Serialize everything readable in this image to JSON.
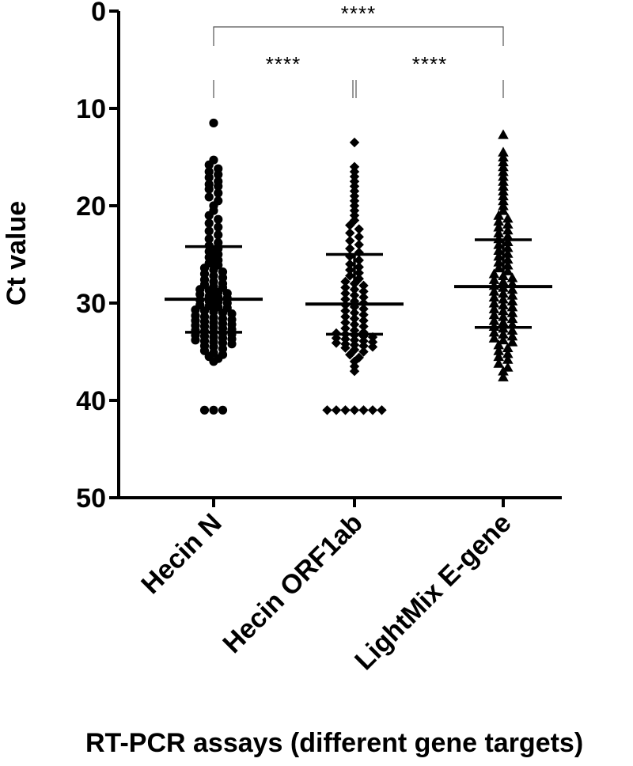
{
  "chart_data": {
    "type": "scatter",
    "ylabel": "Ct value",
    "xlabel": "RT-PCR assays (different gene targets)",
    "ylim": [
      0,
      50
    ],
    "y_inverted": true,
    "y_ticks": [
      "0",
      "10",
      "20",
      "30",
      "40",
      "50"
    ],
    "grid": false,
    "categories": [
      "Hecin N",
      "Hecin ORF1ab",
      "LightMix E-gene"
    ],
    "series": [
      {
        "category": "Hecin N",
        "marker": "circle",
        "median": 29.6,
        "iqr": [
          24.2,
          33.0
        ],
        "values": [
          11.5,
          15.3,
          15.8,
          16.2,
          16.5,
          16.8,
          17.1,
          17.5,
          17.8,
          18.0,
          18.3,
          18.7,
          19.1,
          19.5,
          20.0,
          20.5,
          21.0,
          21.4,
          21.8,
          22.2,
          22.6,
          23.0,
          23.4,
          23.8,
          24.1,
          24.4,
          24.7,
          25.0,
          25.3,
          25.6,
          25.9,
          26.1,
          26.4,
          26.6,
          26.8,
          27.0,
          27.2,
          27.4,
          27.6,
          27.8,
          28.0,
          28.1,
          28.3,
          28.4,
          28.6,
          28.7,
          28.9,
          29.0,
          29.1,
          29.3,
          29.4,
          29.5,
          29.7,
          29.8,
          29.9,
          30.0,
          30.2,
          30.3,
          30.4,
          30.5,
          30.7,
          30.8,
          30.9,
          31.0,
          31.1,
          31.3,
          31.4,
          31.5,
          31.6,
          31.7,
          31.8,
          31.9,
          32.0,
          32.1,
          32.2,
          32.3,
          32.4,
          32.5,
          32.6,
          32.7,
          32.8,
          32.9,
          33.0,
          33.1,
          33.2,
          33.3,
          33.4,
          33.5,
          33.6,
          33.7,
          33.8,
          33.9,
          34.0,
          34.1,
          34.2,
          34.4,
          34.5,
          34.7,
          34.9,
          35.1,
          35.3,
          35.5,
          35.7,
          36.0,
          41.0,
          41.0,
          41.0
        ]
      },
      {
        "category": "Hecin ORF1ab",
        "marker": "diamond",
        "median": 30.1,
        "iqr": [
          25.0,
          33.2
        ],
        "values": [
          13.5,
          16.0,
          16.5,
          17.0,
          17.5,
          18.0,
          18.5,
          19.0,
          19.5,
          20.0,
          20.5,
          21.0,
          21.5,
          22.0,
          22.4,
          22.8,
          23.2,
          23.6,
          24.0,
          24.4,
          24.8,
          25.2,
          25.6,
          26.0,
          26.3,
          26.6,
          26.9,
          27.2,
          27.5,
          27.8,
          28.0,
          28.2,
          28.4,
          28.6,
          28.8,
          29.0,
          29.2,
          29.4,
          29.6,
          29.8,
          30.0,
          30.2,
          30.4,
          30.6,
          30.8,
          31.0,
          31.2,
          31.4,
          31.6,
          31.8,
          32.0,
          32.2,
          32.4,
          32.6,
          32.8,
          33.0,
          33.1,
          33.2,
          33.3,
          33.4,
          33.5,
          33.6,
          33.7,
          33.8,
          33.9,
          34.0,
          34.1,
          34.2,
          34.3,
          34.4,
          34.5,
          34.6,
          34.8,
          35.0,
          35.3,
          35.6,
          36.0,
          36.5,
          37.0,
          41.0,
          41.0,
          41.0,
          41.0,
          41.0,
          41.0,
          41.0
        ]
      },
      {
        "category": "LightMix E-gene",
        "marker": "triangle",
        "median": 28.3,
        "iqr": [
          23.5,
          32.5
        ],
        "values": [
          12.7,
          14.5,
          15.0,
          15.5,
          16.0,
          16.5,
          17.0,
          17.5,
          18.0,
          18.5,
          19.0,
          19.5,
          20.0,
          20.5,
          21.0,
          21.3,
          21.6,
          21.9,
          22.2,
          22.5,
          22.8,
          23.1,
          23.4,
          23.7,
          24.0,
          24.3,
          24.6,
          24.9,
          25.2,
          25.5,
          25.8,
          26.1,
          26.4,
          26.7,
          27.0,
          27.2,
          27.4,
          27.6,
          27.8,
          28.0,
          28.2,
          28.4,
          28.6,
          28.8,
          29.0,
          29.2,
          29.4,
          29.6,
          29.8,
          30.0,
          30.2,
          30.4,
          30.6,
          30.8,
          31.0,
          31.2,
          31.4,
          31.6,
          31.8,
          32.0,
          32.2,
          32.4,
          32.6,
          32.8,
          33.0,
          33.2,
          33.4,
          33.6,
          33.8,
          34.0,
          34.3,
          34.6,
          34.9,
          35.2,
          35.5,
          35.8,
          36.2,
          36.6,
          37.0,
          37.6
        ]
      }
    ],
    "significance": [
      {
        "label": "****",
        "from": "Hecin N",
        "to": "LightMix E-gene"
      },
      {
        "label": "****",
        "from": "Hecin N",
        "to": "Hecin ORF1ab"
      },
      {
        "label": "****",
        "from": "Hecin ORF1ab",
        "to": "LightMix E-gene"
      }
    ]
  }
}
